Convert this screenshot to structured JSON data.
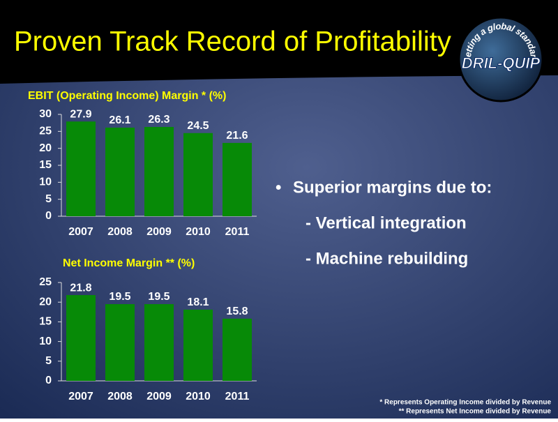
{
  "title": "Proven Track Record of Profitability",
  "logo": {
    "tagline": "Setting a global standard",
    "name": "DRIL-QUIP"
  },
  "chart_data": [
    {
      "type": "bar",
      "title": "EBIT (Operating Income) Margin * (%)",
      "categories": [
        "2007",
        "2008",
        "2009",
        "2010",
        "2011"
      ],
      "values": [
        27.9,
        26.1,
        26.3,
        24.5,
        21.6
      ],
      "color": "#078a07",
      "ylim": [
        0,
        30
      ],
      "yticks": [
        0,
        5,
        10,
        15,
        20,
        25,
        30
      ]
    },
    {
      "type": "bar",
      "title": "Net Income Margin ** (%)",
      "categories": [
        "2007",
        "2008",
        "2009",
        "2010",
        "2011"
      ],
      "values": [
        21.8,
        19.5,
        19.5,
        18.1,
        15.8
      ],
      "color": "#078a07",
      "ylim": [
        0,
        25
      ],
      "yticks": [
        0,
        5,
        10,
        15,
        20,
        25
      ]
    }
  ],
  "bullets": {
    "marker": "•",
    "items": [
      "Superior margins due to:",
      "- Vertical integration",
      "- Machine rebuilding"
    ]
  },
  "footnotes": [
    "* Represents Operating Income divided by Revenue",
    "** Represents Net Income divided by Revenue"
  ]
}
